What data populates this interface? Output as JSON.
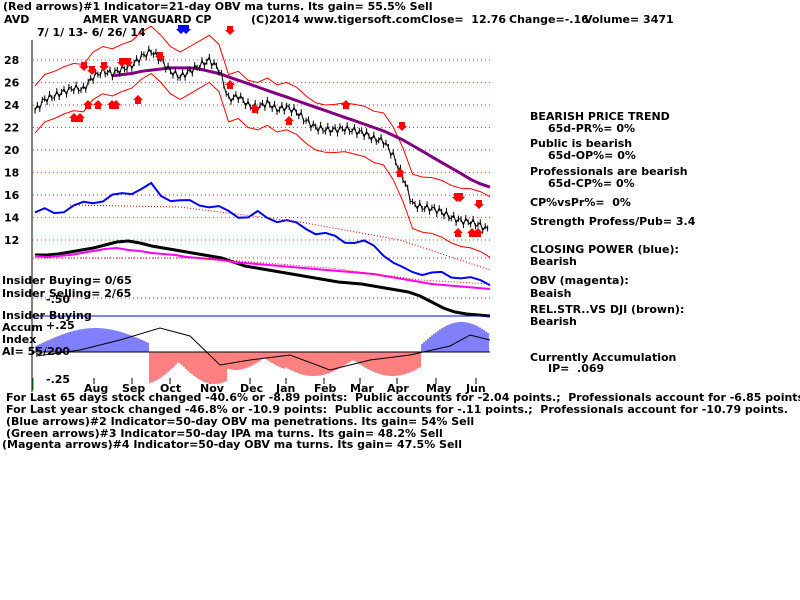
{
  "header": {
    "line1": "(Red arrows)#1 Indicator=21-day OBV ma turns. Its gain= 55.5% Sell",
    "ticker": "AVD",
    "company": "AMER VANGUARD CP",
    "copyright": "(C)2014 www.tigersoft.com",
    "close": "Close=  12.76",
    "change": "Change=-.16",
    "volume": "Volume= 3471",
    "dates": "7/ 1/ 13- 6/ 26/ 14"
  },
  "right_panel": {
    "trend": "BEARISH PRICE TREND",
    "pr": "65d-PR%= 0%",
    "public": "Public is bearish",
    "op": "65d-OP%= 0%",
    "pros": "Professionals are bearish",
    "cp": "65d-CP%= 0%",
    "cpvspr": "CP%vsPr%=  0%",
    "strength": "Strength Profess/Pub= 3.4",
    "closing_power": "CLOSING POWER (blue):",
    "closing_power_val": "Bearish",
    "obv": "OBV (magenta):",
    "obv_val": "Beaish",
    "relstr": "REL.STR..VS DJI (brown):",
    "relstr_val": "Bearish",
    "accum": "Currently Accumulation",
    "ip": "IP=  .069"
  },
  "left_labels": {
    "insider_buying": "Insider Buying= 0/65",
    "insider_selling": "Insider Selling= 2/65",
    "insider_buying2": "Insider Buying",
    "accum": "Accum",
    "index": "Index",
    "ai": "AI= 55/200",
    "plus25": "+.25",
    "minus25": "-.25",
    "fifty": "-.50"
  },
  "footer": [
    "For Last 65 days stock changed -40.6% or -8.89 points:  Public accounts for -2.04 points.;  Professionals account for -6.85 points.",
    "For Last year stock changed -46.8% or -10.9 points:  Public accounts for -.11 points.;  Professionals account for -10.79 points.",
    "(Blue arrows)#2 Indicator=50-day OBV ma penetrations. Its gain= 54% Sell",
    "(Green arrows)#3 Indicator=50-day IPA ma turns. Its gain= 48.2% Sell",
    "(Magenta arrows)#4 Indicator=50-day OBV ma turns. Its gain= 47.5% Sell"
  ],
  "chart_data": {
    "type": "line",
    "x_labels": [
      "Aug",
      "Sep",
      "Oct",
      "Nov",
      "Dec",
      "Jan",
      "Feb",
      "Mar",
      "Apr",
      "May",
      "Jun"
    ],
    "y_ticks": [
      12,
      14,
      16,
      18,
      20,
      22,
      24,
      26,
      28
    ],
    "ylim": [
      11,
      29.5
    ],
    "price_weekly": [
      23.5,
      24.5,
      24.8,
      25.2,
      25.5,
      25.4,
      26.5,
      27.0,
      26.8,
      27.2,
      27.5,
      28.3,
      28.8,
      28.0,
      27.0,
      26.5,
      27.0,
      27.5,
      28.0,
      27.2,
      24.5,
      24.8,
      24.0,
      23.8,
      24.2,
      23.6,
      23.8,
      23.4,
      22.6,
      22.0,
      21.8,
      21.8,
      21.9,
      21.7,
      21.5,
      21.0,
      20.8,
      19.5,
      17.6,
      15.2,
      14.9,
      14.8,
      14.5,
      14.0,
      13.7,
      13.6,
      13.3,
      12.8
    ],
    "ma65_weekly": [
      24.5,
      24.7,
      25.0,
      25.3,
      25.6,
      25.9,
      26.2,
      26.4,
      26.6,
      26.7,
      26.8,
      27.0,
      27.1,
      27.2,
      27.3,
      27.3,
      27.3,
      27.2,
      27.0,
      26.8,
      26.5,
      26.2,
      25.9,
      25.6,
      25.3,
      25.0,
      24.7,
      24.4,
      24.1,
      23.8,
      23.5,
      23.2,
      22.9,
      22.6,
      22.3,
      22.0,
      21.7,
      21.3,
      20.9,
      20.4,
      19.9,
      19.4,
      18.9,
      18.4,
      17.9,
      17.4,
      17.0,
      16.7
    ],
    "closing_power_weekly": [
      14.4,
      14.5,
      14.4,
      14.6,
      14.8,
      15.0,
      15.2,
      15.3,
      15.5,
      15.7,
      15.9,
      16.1,
      16.3,
      15.6,
      15.4,
      15.2,
      15.1,
      15.0,
      14.9,
      14.7,
      14.4,
      14.2,
      14.1,
      14.3,
      14.0,
      13.9,
      13.8,
      13.5,
      13.3,
      13.0,
      12.8,
      12.6,
      12.4,
      12.3,
      12.2,
      12.0,
      11.5,
      10.8,
      10.3,
      10.2,
      10.1,
      10.0,
      10.0,
      9.9,
      9.8,
      9.6,
      9.5,
      9.4
    ],
    "annotations": {
      "red_arrows_down": [
        "Aug",
        "Aug",
        "Aug",
        "Sep",
        "Oct",
        "Nov",
        "Apr",
        "Jun"
      ],
      "red_arrows_up": [
        "Aug",
        "Aug",
        "Sep",
        "Nov",
        "Dec",
        "Jan",
        "Feb",
        "Apr",
        "May",
        "Jun"
      ],
      "blue_arrows_down": [
        "Oct"
      ]
    },
    "accum_ylim": [
      -0.25,
      0.25
    ],
    "grid": true
  }
}
